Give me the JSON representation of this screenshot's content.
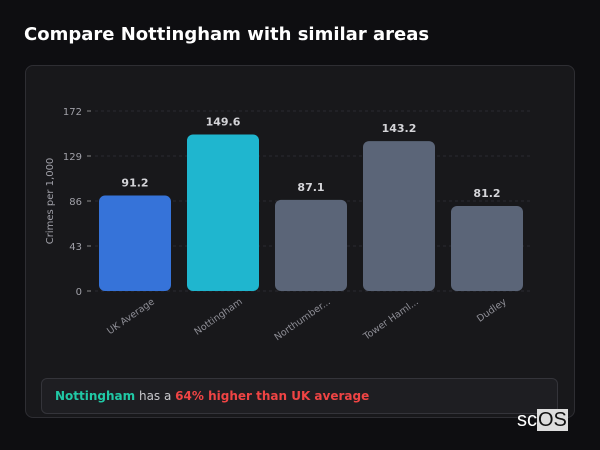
{
  "title": "Compare Nottingham with similar areas",
  "chart_data": {
    "type": "bar",
    "categories": [
      "UK Average",
      "Nottingham",
      "Northumber...",
      "Tower Haml...",
      "Dudley"
    ],
    "values": [
      91.2,
      149.6,
      87.1,
      143.2,
      81.2
    ],
    "value_labels": [
      "91.2",
      "149.6",
      "87.1",
      "143.2",
      "81.2"
    ],
    "colors": [
      "#3673d9",
      "#1fb6cf",
      "#5b6578",
      "#5b6578",
      "#5b6578"
    ],
    "ylabel": "Crimes per 1,000",
    "yticks": [
      0,
      43,
      86,
      129,
      172
    ],
    "ylim": [
      0,
      172
    ],
    "grid": true
  },
  "note": {
    "area": "Nottingham",
    "middle": " has a ",
    "comparison": "64% higher than UK average"
  },
  "logo": {
    "text1": "sc",
    "text2": "OS"
  }
}
